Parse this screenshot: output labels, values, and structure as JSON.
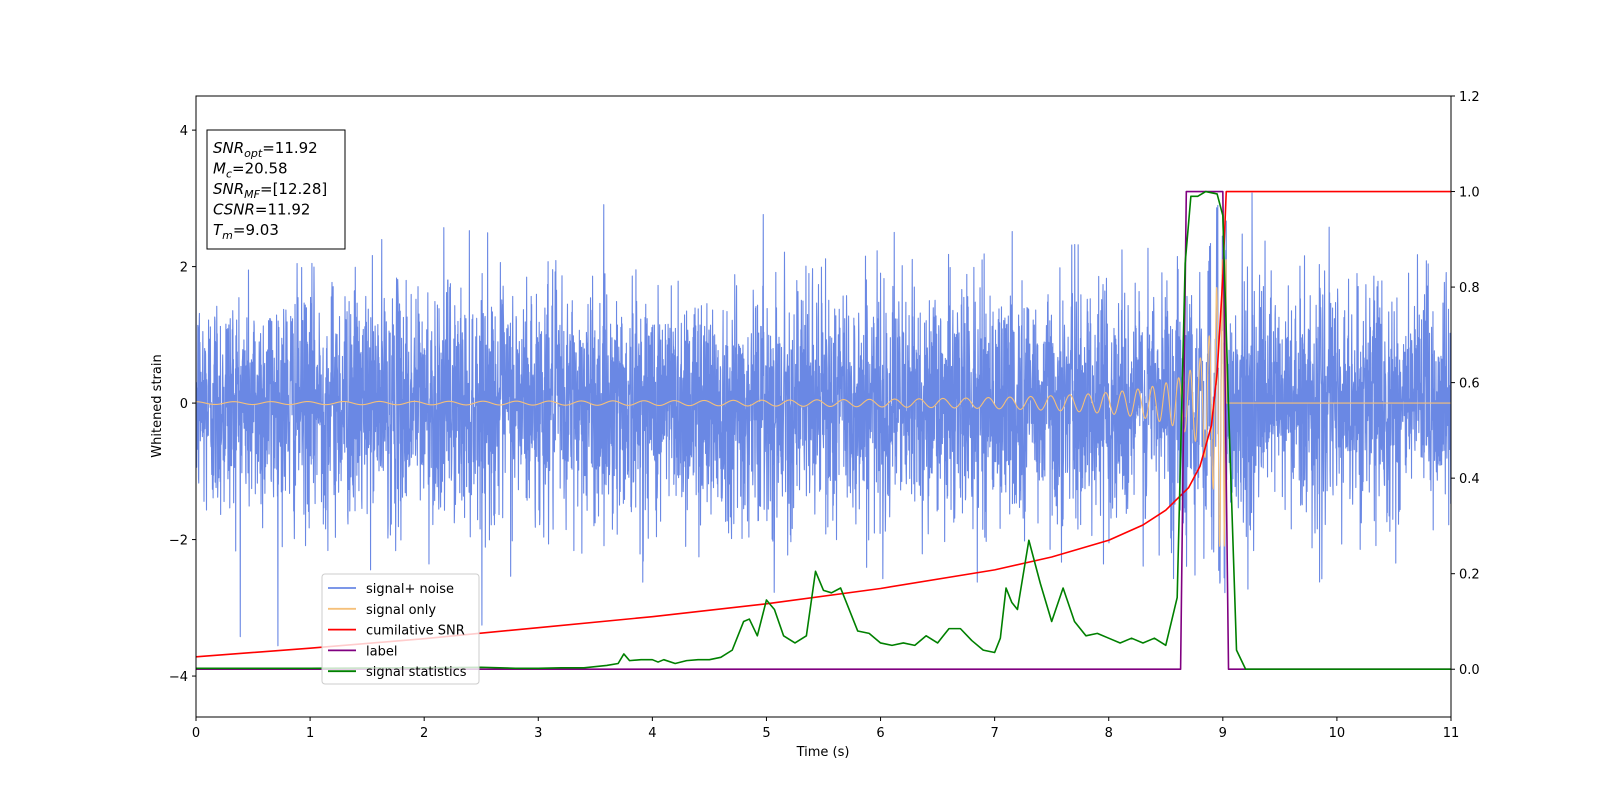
{
  "chart_data": {
    "type": "line",
    "title": "",
    "xlabel": "Time (s)",
    "ylabel": "Whitened strain",
    "y2label": "",
    "xlim": [
      0,
      11
    ],
    "ylim": [
      -4.6,
      4.5
    ],
    "y2lim": [
      -0.1,
      1.2
    ],
    "xticks": [
      0,
      1,
      2,
      3,
      4,
      5,
      6,
      7,
      8,
      9,
      10,
      11
    ],
    "yticks": [
      -4,
      -2,
      0,
      2,
      4
    ],
    "y2ticks": [
      0.0,
      0.2,
      0.4,
      0.6,
      0.8,
      1.0,
      1.2
    ],
    "grid": false,
    "legend_placement": "lower-left",
    "annotation": {
      "lines": [
        {
          "sym": "SNR",
          "sub": "opt",
          "value": "=11.92"
        },
        {
          "sym": "M",
          "sub": "c",
          "value": "=20.58"
        },
        {
          "sym": "SNR",
          "sub": "MF",
          "value": "=[12.28]"
        },
        {
          "sym": "CSNR",
          "sub": "",
          "value": "=11.92"
        },
        {
          "sym": "T",
          "sub": "m",
          "value": "=9.03"
        }
      ]
    },
    "series": [
      {
        "name": "signal+ noise",
        "axis": "left",
        "color": "#6a88e4",
        "kind": "noise",
        "noise_std": 0.85,
        "noise_clip": 4.1,
        "sample_rate_hz": 500,
        "plus_signal": true
      },
      {
        "name": "signal only",
        "axis": "left",
        "color": "#f5c07a",
        "kind": "chirp",
        "t_merge": 9.03,
        "amp_start": 0.02,
        "amp_peak": 2.1,
        "freq_start": 3.0,
        "freq_peak": 60
      },
      {
        "name": "cumilative SNR",
        "axis": "right",
        "color": "#ff0000",
        "x": [
          0,
          1,
          2,
          3,
          4,
          5,
          6,
          7,
          7.5,
          8,
          8.3,
          8.5,
          8.7,
          8.8,
          8.9,
          8.95,
          9.0,
          9.03,
          11
        ],
        "y": [
          0.026,
          0.044,
          0.064,
          0.087,
          0.11,
          0.137,
          0.169,
          0.208,
          0.235,
          0.27,
          0.302,
          0.333,
          0.38,
          0.425,
          0.51,
          0.62,
          0.82,
          1.0,
          1.0
        ]
      },
      {
        "name": "label",
        "axis": "right",
        "color": "#800080",
        "x": [
          0,
          8.63,
          8.68,
          9.0,
          9.05,
          11
        ],
        "y": [
          0.0,
          0.0,
          1.0,
          1.0,
          0.0,
          0.0
        ]
      },
      {
        "name": "signal statistics",
        "axis": "right",
        "color": "#008000",
        "x": [
          0,
          1,
          2,
          2.5,
          2.8,
          3.0,
          3.2,
          3.4,
          3.6,
          3.7,
          3.75,
          3.8,
          3.9,
          4.0,
          4.05,
          4.1,
          4.2,
          4.3,
          4.4,
          4.5,
          4.6,
          4.7,
          4.8,
          4.85,
          4.92,
          5.0,
          5.07,
          5.15,
          5.25,
          5.35,
          5.43,
          5.5,
          5.57,
          5.65,
          5.7,
          5.8,
          5.9,
          6.0,
          6.1,
          6.2,
          6.3,
          6.4,
          6.5,
          6.55,
          6.6,
          6.7,
          6.8,
          6.9,
          7.0,
          7.05,
          7.1,
          7.15,
          7.2,
          7.3,
          7.4,
          7.5,
          7.6,
          7.7,
          7.8,
          7.9,
          8.0,
          8.1,
          8.2,
          8.3,
          8.4,
          8.5,
          8.6,
          8.67,
          8.72,
          8.78,
          8.85,
          8.95,
          9.0,
          9.05,
          9.12,
          9.2,
          11
        ],
        "y": [
          0.002,
          0.002,
          0.003,
          0.004,
          0.002,
          0.002,
          0.003,
          0.003,
          0.008,
          0.012,
          0.032,
          0.018,
          0.02,
          0.02,
          0.015,
          0.02,
          0.012,
          0.018,
          0.02,
          0.02,
          0.025,
          0.04,
          0.1,
          0.105,
          0.07,
          0.145,
          0.125,
          0.07,
          0.055,
          0.07,
          0.205,
          0.165,
          0.16,
          0.17,
          0.14,
          0.08,
          0.075,
          0.055,
          0.05,
          0.055,
          0.05,
          0.07,
          0.055,
          0.07,
          0.085,
          0.085,
          0.06,
          0.04,
          0.035,
          0.065,
          0.17,
          0.14,
          0.125,
          0.27,
          0.18,
          0.1,
          0.17,
          0.1,
          0.07,
          0.075,
          0.065,
          0.055,
          0.065,
          0.055,
          0.065,
          0.05,
          0.15,
          0.85,
          0.99,
          0.99,
          1.0,
          0.995,
          0.95,
          0.55,
          0.04,
          0.0,
          0.0
        ]
      }
    ]
  }
}
